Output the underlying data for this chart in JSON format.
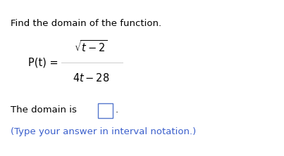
{
  "title": "Find the domain of the function.",
  "title_fontsize": 9.5,
  "title_color": "#000000",
  "function_label": "P(t) =",
  "numerator": "$\\sqrt{t-2}$",
  "denominator": "$4t-28$",
  "domain_text": "The domain is",
  "period": ".",
  "hint_text": "(Type your answer in interval notation.)",
  "hint_color": "#3a5fcc",
  "font_size_function": 10.5,
  "font_size_domain": 9.5,
  "font_size_hint": 9.5,
  "background_color": "#ffffff",
  "separator_color": "#bbbbbb",
  "box_edge_color": "#5577cc"
}
